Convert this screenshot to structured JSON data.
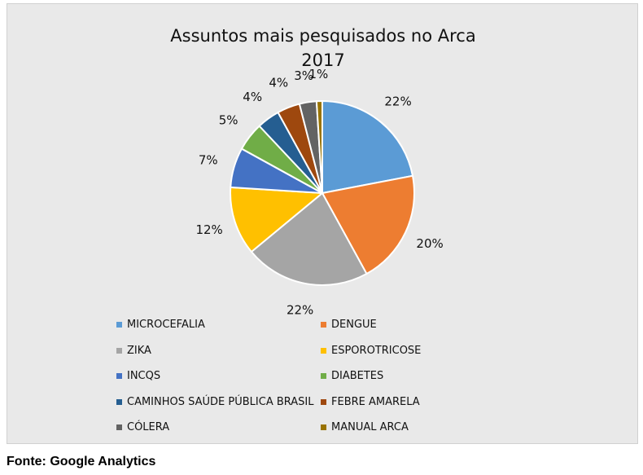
{
  "chart_data": {
    "type": "pie",
    "title": "Assuntos mais pesquisados no Arca",
    "subtitle": "2017",
    "legend_position": "bottom",
    "slices": [
      {
        "label": "MICROCEFALIA",
        "value": 22,
        "value_label": "22%",
        "color": "#5b9bd5"
      },
      {
        "label": "DENGUE",
        "value": 20,
        "value_label": "20%",
        "color": "#ed7d31"
      },
      {
        "label": "ZIKA",
        "value": 22,
        "value_label": "22%",
        "color": "#a5a5a5"
      },
      {
        "label": "ESPOROTRICOSE",
        "value": 12,
        "value_label": "12%",
        "color": "#ffc000"
      },
      {
        "label": "INCQS",
        "value": 7,
        "value_label": "7%",
        "color": "#4472c4"
      },
      {
        "label": "DIABETES",
        "value": 5,
        "value_label": "5%",
        "color": "#70ad47"
      },
      {
        "label": "CAMINHOS SAÚDE PÚBLICA BRASIL",
        "value": 4,
        "value_label": "4%",
        "color": "#255e91"
      },
      {
        "label": "FEBRE AMARELA",
        "value": 4,
        "value_label": "4%",
        "color": "#9e480e"
      },
      {
        "label": "CÓLERA",
        "value": 3,
        "value_label": "3%",
        "color": "#636363"
      },
      {
        "label": "MANUAL ARCA",
        "value": 1,
        "value_label": "1%",
        "color": "#997300"
      }
    ]
  },
  "source": "Fonte: Google Analytics"
}
